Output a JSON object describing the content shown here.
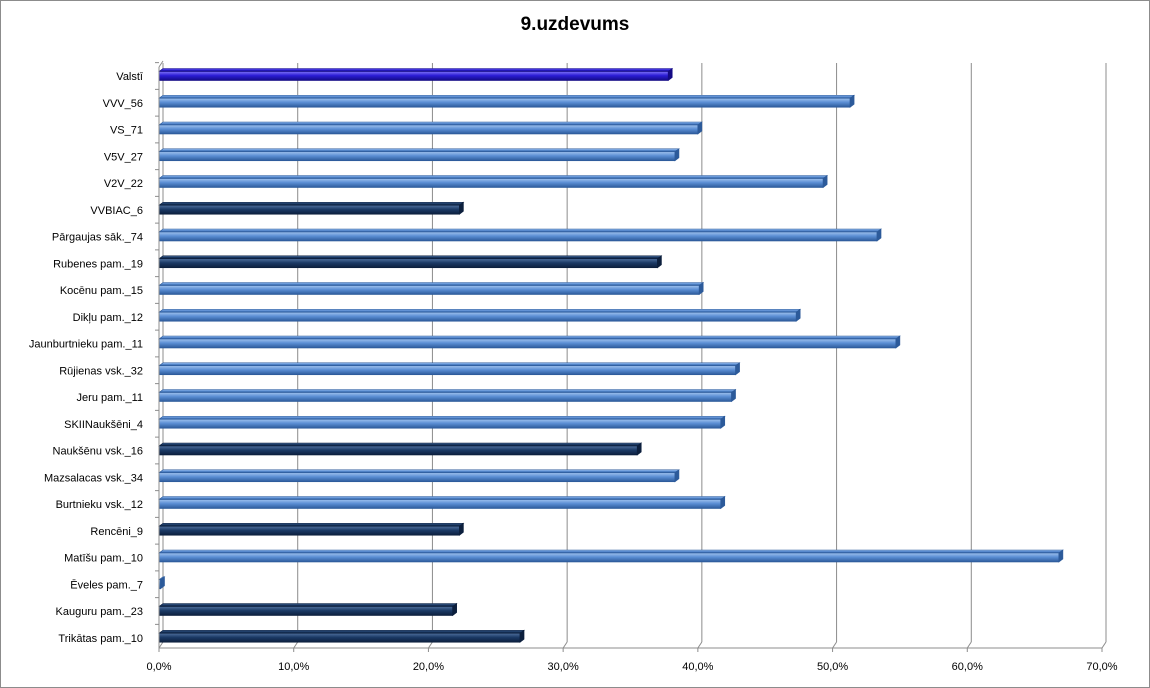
{
  "chart_data": {
    "type": "bar",
    "orientation": "horizontal",
    "title": "9.uzdevums",
    "categories": [
      "Valstī",
      "VVV_56",
      "VS_71",
      "V5V_27",
      "V2V_22",
      "VVBIAC_6",
      "Pārgaujas sāk._74",
      "Rubenes pam._19",
      "Kocēnu pam._15",
      "Dikļu pam._12",
      "Jaunburtnieku pam._11",
      "Rūjienas vsk._32",
      "Jeru pam._11",
      "SKIINaukšēni_4",
      "Naukšēnu vsk._16",
      "Mazsalacas vsk._34",
      "Burtnieku vsk._12",
      "Rencēni_9",
      "Matīšu pam._10",
      "Ēveles pam._7",
      "Kauguru pam._23",
      "Trikātas pam._10"
    ],
    "values": [
      37.8,
      51.3,
      40.0,
      38.3,
      49.3,
      22.3,
      53.3,
      37.0,
      40.1,
      47.3,
      54.7,
      42.8,
      42.5,
      41.7,
      35.5,
      38.3,
      41.7,
      22.3,
      66.8,
      0,
      21.8,
      26.8
    ],
    "bar_colors": [
      "#2b1cd6",
      "#5b8ed4",
      "#5b8ed4",
      "#5b8ed4",
      "#5b8ed4",
      "#1b3a66",
      "#5b8ed4",
      "#1b3a66",
      "#5b8ed4",
      "#5b8ed4",
      "#5b8ed4",
      "#5b8ed4",
      "#5b8ed4",
      "#5b8ed4",
      "#1b3a66",
      "#5b8ed4",
      "#5b8ed4",
      "#1b3a66",
      "#5b8ed4",
      "#5b8ed4",
      "#1b3a66",
      "#1b3a66"
    ],
    "x_ticks": [
      0,
      10,
      20,
      30,
      40,
      50,
      60,
      70
    ],
    "x_tick_labels": [
      "0,0%",
      "10,0%",
      "20,0%",
      "30,0%",
      "40,0%",
      "50,0%",
      "60,0%",
      "70,0%"
    ],
    "xlim": [
      0,
      70
    ],
    "grid": "vertical",
    "legend": "none"
  }
}
